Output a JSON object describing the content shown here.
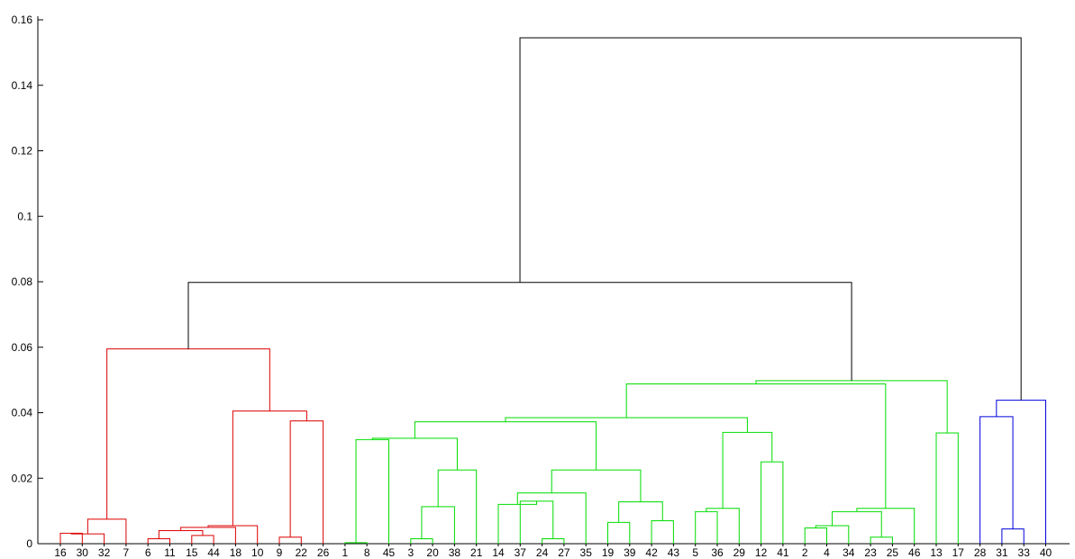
{
  "chart_data": {
    "type": "dendrogram",
    "title": "",
    "xlabel": "",
    "ylabel": "",
    "ylim": [
      0,
      0.16
    ],
    "y_ticks": [
      "0",
      "0.02",
      "0.04",
      "0.06",
      "0.08",
      "0.1",
      "0.12",
      "0.14",
      "0.16"
    ],
    "grid": false,
    "colors": {
      "cluster1": "#dd0000",
      "cluster2": "#00dd00",
      "cluster3": "#0000dd",
      "above_threshold": "#000000"
    },
    "leaves": [
      "16",
      "30",
      "32",
      "7",
      "6",
      "11",
      "15",
      "44",
      "18",
      "10",
      "9",
      "22",
      "26",
      "1",
      "8",
      "45",
      "3",
      "20",
      "38",
      "21",
      "14",
      "37",
      "24",
      "27",
      "35",
      "19",
      "39",
      "42",
      "43",
      "5",
      "36",
      "29",
      "12",
      "41",
      "2",
      "4",
      "34",
      "23",
      "25",
      "46",
      "13",
      "17",
      "28",
      "31",
      "33",
      "40"
    ],
    "merges": [
      {
        "a": "16",
        "b": "30",
        "height": 0.0032,
        "color": "cluster1"
      },
      {
        "a": "n1",
        "b": "32",
        "height": 0.003,
        "color": "cluster1"
      },
      {
        "a": "n2",
        "b": "7",
        "height": 0.0075,
        "color": "cluster1"
      },
      {
        "a": "6",
        "b": "11",
        "height": 0.0015,
        "color": "cluster1"
      },
      {
        "a": "15",
        "b": "44",
        "height": 0.0025,
        "color": "cluster1"
      },
      {
        "a": "n4",
        "b": "n5",
        "height": 0.004,
        "color": "cluster1"
      },
      {
        "a": "n6",
        "b": "18",
        "height": 0.005,
        "color": "cluster1"
      },
      {
        "a": "n7",
        "b": "10",
        "height": 0.0055,
        "color": "cluster1"
      },
      {
        "a": "9",
        "b": "22",
        "height": 0.002,
        "color": "cluster1"
      },
      {
        "a": "n9",
        "b": "26",
        "height": 0.0375,
        "color": "cluster1"
      },
      {
        "a": "n8",
        "b": "n10",
        "height": 0.0405,
        "color": "cluster1"
      },
      {
        "a": "n3",
        "b": "n11",
        "height": 0.0595,
        "color": "cluster1"
      },
      {
        "a": "1",
        "b": "8",
        "height": 0.0003,
        "color": "cluster2"
      },
      {
        "a": "n13",
        "b": "45",
        "height": 0.0318,
        "color": "cluster2"
      },
      {
        "a": "3",
        "b": "20",
        "height": 0.0015,
        "color": "cluster2"
      },
      {
        "a": "n15",
        "b": "38",
        "height": 0.0113,
        "color": "cluster2"
      },
      {
        "a": "n16",
        "b": "21",
        "height": 0.0225,
        "color": "cluster2"
      },
      {
        "a": "n14",
        "b": "n17",
        "height": 0.0322,
        "color": "cluster2"
      },
      {
        "a": "24",
        "b": "27",
        "height": 0.0015,
        "color": "cluster2"
      },
      {
        "a": "37",
        "b": "n19",
        "height": 0.013,
        "color": "cluster2"
      },
      {
        "a": "14",
        "b": "n20",
        "height": 0.012,
        "color": "cluster2"
      },
      {
        "a": "n21",
        "b": "35",
        "height": 0.0155,
        "color": "cluster2"
      },
      {
        "a": "19",
        "b": "39",
        "height": 0.0065,
        "color": "cluster2"
      },
      {
        "a": "42",
        "b": "43",
        "height": 0.007,
        "color": "cluster2"
      },
      {
        "a": "n23",
        "b": "n24",
        "height": 0.0128,
        "color": "cluster2"
      },
      {
        "a": "n22",
        "b": "n25",
        "height": 0.0225,
        "color": "cluster2"
      },
      {
        "a": "n18",
        "b": "n26",
        "height": 0.0372,
        "color": "cluster2"
      },
      {
        "a": "5",
        "b": "36",
        "height": 0.0098,
        "color": "cluster2"
      },
      {
        "a": "n28",
        "b": "29",
        "height": 0.0108,
        "color": "cluster2"
      },
      {
        "a": "12",
        "b": "41",
        "height": 0.025,
        "color": "cluster2"
      },
      {
        "a": "n29",
        "b": "n30",
        "height": 0.034,
        "color": "cluster2"
      },
      {
        "a": "n27",
        "b": "n31",
        "height": 0.0385,
        "color": "cluster2"
      },
      {
        "a": "2",
        "b": "4",
        "height": 0.0048,
        "color": "cluster2"
      },
      {
        "a": "n33",
        "b": "34",
        "height": 0.0055,
        "color": "cluster2"
      },
      {
        "a": "23",
        "b": "25",
        "height": 0.002,
        "color": "cluster2"
      },
      {
        "a": "n34",
        "b": "n35",
        "height": 0.0098,
        "color": "cluster2"
      },
      {
        "a": "n36",
        "b": "46",
        "height": 0.0108,
        "color": "cluster2"
      },
      {
        "a": "n32",
        "b": "n37",
        "height": 0.0488,
        "color": "cluster2"
      },
      {
        "a": "13",
        "b": "17",
        "height": 0.0338,
        "color": "cluster2"
      },
      {
        "a": "n38",
        "b": "n39",
        "height": 0.0498,
        "color": "cluster2"
      },
      {
        "a": "n12",
        "b": "n40",
        "height": 0.0798,
        "color": "above_threshold"
      },
      {
        "a": "31",
        "b": "33",
        "height": 0.0045,
        "color": "cluster3"
      },
      {
        "a": "28",
        "b": "n42",
        "height": 0.0388,
        "color": "cluster3"
      },
      {
        "a": "n43",
        "b": "40",
        "height": 0.0438,
        "color": "cluster3"
      },
      {
        "a": "n41",
        "b": "n44",
        "height": 0.1545,
        "color": "above_threshold"
      }
    ]
  }
}
